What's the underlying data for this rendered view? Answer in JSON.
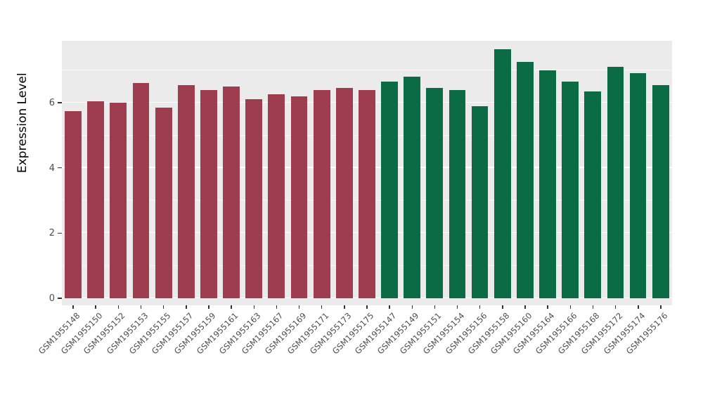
{
  "chart_data": {
    "type": "bar",
    "title": "",
    "xlabel": "",
    "ylabel": "Expression Level",
    "ylim": [
      0,
      7.9
    ],
    "yticks_major": [
      0,
      2,
      4,
      6
    ],
    "yticks_minor": [
      1,
      3,
      5,
      7
    ],
    "grid": "on",
    "legend": "none",
    "panel_background": "#EBEBEB",
    "series": [
      {
        "name": "group-red",
        "color": "#9E3D4E",
        "points": [
          {
            "label": "GSM1955148",
            "value": 5.75
          },
          {
            "label": "GSM1955150",
            "value": 6.05
          },
          {
            "label": "GSM1955152",
            "value": 6.0
          },
          {
            "label": "GSM1955153",
            "value": 6.6
          },
          {
            "label": "GSM1955155",
            "value": 5.85
          },
          {
            "label": "GSM1955157",
            "value": 6.55
          },
          {
            "label": "GSM1955159",
            "value": 6.4
          },
          {
            "label": "GSM1955161",
            "value": 6.5
          },
          {
            "label": "GSM1955163",
            "value": 6.1
          },
          {
            "label": "GSM1955167",
            "value": 6.25
          },
          {
            "label": "GSM1955169",
            "value": 6.2
          },
          {
            "label": "GSM1955171",
            "value": 6.4
          },
          {
            "label": "GSM1955173",
            "value": 6.45
          },
          {
            "label": "GSM1955175",
            "value": 6.4
          }
        ]
      },
      {
        "name": "group-green",
        "color": "#0B6B45",
        "points": [
          {
            "label": "GSM1955147",
            "value": 6.65
          },
          {
            "label": "GSM1955149",
            "value": 6.8
          },
          {
            "label": "GSM1955151",
            "value": 6.45
          },
          {
            "label": "GSM1955154",
            "value": 6.4
          },
          {
            "label": "GSM1955156",
            "value": 5.9
          },
          {
            "label": "GSM1955158",
            "value": 7.65
          },
          {
            "label": "GSM1955160",
            "value": 7.25
          },
          {
            "label": "GSM1955164",
            "value": 7.0
          },
          {
            "label": "GSM1955166",
            "value": 6.65
          },
          {
            "label": "GSM1955168",
            "value": 6.35
          },
          {
            "label": "GSM1955172",
            "value": 7.1
          },
          {
            "label": "GSM1955174",
            "value": 6.9
          },
          {
            "label": "GSM1955176",
            "value": 6.55
          }
        ]
      }
    ]
  }
}
